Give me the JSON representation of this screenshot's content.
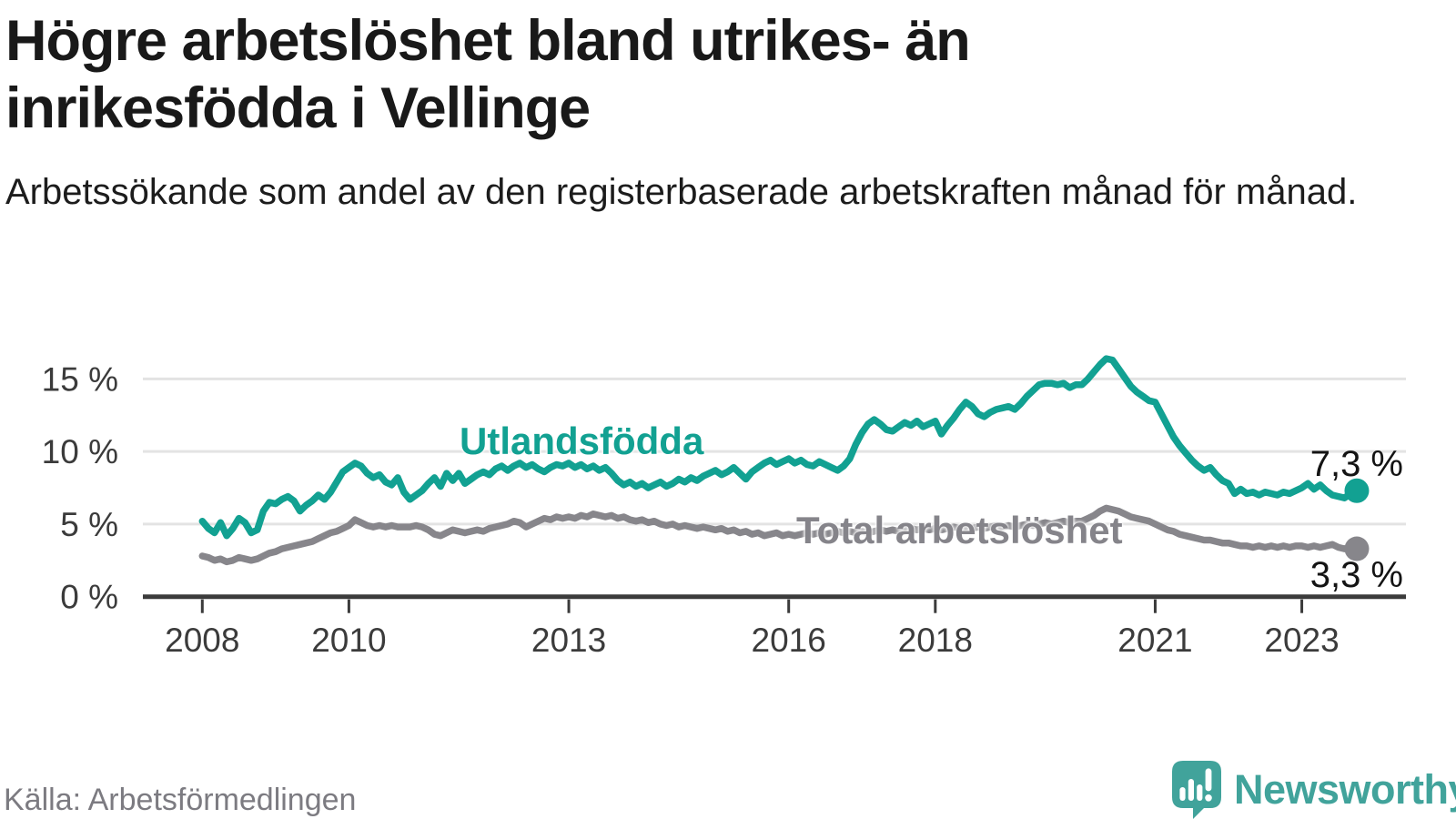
{
  "header": {
    "title": "Högre arbetslöshet bland utrikes- än inrikesfödda i Vellinge",
    "subtitle": "Arbetssökande som andel av den registerbaserade arbetskraften månad för månad."
  },
  "chart_data": {
    "type": "line",
    "title": "Högre arbetslöshet bland utrikes- än inrikesfödda i Vellinge",
    "x_unit": "month",
    "x_start": "2008-01",
    "x_end": "2023-10",
    "x_ticks": [
      "2008",
      "2010",
      "2013",
      "2016",
      "2018",
      "2021",
      "2023"
    ],
    "y_ticks": [
      0,
      5,
      10,
      15
    ],
    "y_tick_labels": [
      "0 %",
      "5 %",
      "10 %",
      "15 %"
    ],
    "ylim": [
      0,
      17
    ],
    "grid": "horizontal",
    "legend_position": "inline-labels",
    "colors": {
      "accent_teal": "#12a192",
      "accent_gray": "#87868b",
      "grid": "#e3e3e3",
      "axis": "#3b3b3b"
    },
    "series": [
      {
        "name": "Utlandsfödda",
        "color": "#12a192",
        "end_label": "7,3 %",
        "end_value": 7.3,
        "values": [
          5.2,
          4.7,
          4.4,
          5.1,
          4.2,
          4.7,
          5.4,
          5.1,
          4.4,
          4.6,
          5.9,
          6.5,
          6.4,
          6.7,
          6.9,
          6.6,
          5.9,
          6.3,
          6.6,
          7.0,
          6.7,
          7.2,
          7.9,
          8.6,
          8.9,
          9.2,
          9.0,
          8.5,
          8.2,
          8.4,
          7.9,
          7.7,
          8.2,
          7.2,
          6.7,
          7.0,
          7.3,
          7.8,
          8.2,
          7.6,
          8.5,
          8.0,
          8.5,
          7.8,
          8.1,
          8.4,
          8.6,
          8.4,
          8.8,
          9.0,
          8.7,
          9.0,
          9.2,
          8.9,
          9.1,
          8.8,
          8.6,
          8.9,
          9.1,
          9.0,
          9.2,
          8.9,
          9.1,
          8.8,
          9.0,
          8.7,
          8.9,
          8.5,
          8.0,
          7.7,
          7.9,
          7.6,
          7.8,
          7.5,
          7.7,
          7.9,
          7.6,
          7.8,
          8.1,
          7.9,
          8.2,
          8.0,
          8.3,
          8.5,
          8.7,
          8.4,
          8.6,
          8.9,
          8.5,
          8.1,
          8.6,
          8.9,
          9.2,
          9.4,
          9.1,
          9.3,
          9.5,
          9.2,
          9.4,
          9.1,
          9.0,
          9.3,
          9.1,
          8.9,
          8.7,
          9.0,
          9.5,
          10.5,
          11.3,
          11.9,
          12.2,
          11.9,
          11.5,
          11.4,
          11.7,
          12.0,
          11.8,
          12.1,
          11.7,
          11.9,
          12.1,
          11.2,
          11.8,
          12.3,
          12.9,
          13.4,
          13.1,
          12.6,
          12.4,
          12.7,
          12.9,
          13.0,
          13.1,
          12.9,
          13.3,
          13.8,
          14.2,
          14.6,
          14.7,
          14.7,
          14.6,
          14.7,
          14.4,
          14.6,
          14.6,
          15.0,
          15.5,
          16.0,
          16.4,
          16.3,
          15.7,
          15.1,
          14.5,
          14.1,
          13.8,
          13.5,
          13.4,
          12.6,
          11.8,
          11.0,
          10.4,
          9.9,
          9.4,
          9.0,
          8.7,
          8.9,
          8.4,
          8.0,
          7.8,
          7.1,
          7.4,
          7.1,
          7.2,
          7.0,
          7.2,
          7.1,
          7.0,
          7.2,
          7.1,
          7.3,
          7.5,
          7.8,
          7.4,
          7.7,
          7.3,
          7.0,
          6.9,
          6.8,
          7.1,
          7.3
        ]
      },
      {
        "name": "Total arbetslöshet",
        "color": "#87868b",
        "end_label": "3,3 %",
        "end_value": 3.3,
        "values": [
          2.8,
          2.7,
          2.5,
          2.6,
          2.4,
          2.5,
          2.7,
          2.6,
          2.5,
          2.6,
          2.8,
          3.0,
          3.1,
          3.3,
          3.4,
          3.5,
          3.6,
          3.7,
          3.8,
          4.0,
          4.2,
          4.4,
          4.5,
          4.7,
          4.9,
          5.3,
          5.1,
          4.9,
          4.8,
          4.9,
          4.8,
          4.9,
          4.8,
          4.8,
          4.8,
          4.9,
          4.8,
          4.6,
          4.3,
          4.2,
          4.4,
          4.6,
          4.5,
          4.4,
          4.5,
          4.6,
          4.5,
          4.7,
          4.8,
          4.9,
          5.0,
          5.2,
          5.1,
          4.8,
          5.0,
          5.2,
          5.4,
          5.3,
          5.5,
          5.4,
          5.5,
          5.4,
          5.6,
          5.5,
          5.7,
          5.6,
          5.5,
          5.6,
          5.4,
          5.5,
          5.3,
          5.2,
          5.3,
          5.1,
          5.2,
          5.0,
          4.9,
          5.0,
          4.8,
          4.9,
          4.8,
          4.7,
          4.8,
          4.7,
          4.6,
          4.7,
          4.5,
          4.6,
          4.4,
          4.5,
          4.3,
          4.4,
          4.2,
          4.3,
          4.4,
          4.2,
          4.3,
          4.2,
          4.3,
          4.4,
          4.3,
          4.4,
          4.3,
          4.4,
          4.5,
          4.4,
          4.5,
          4.4,
          4.5,
          4.4,
          4.5,
          4.6,
          4.5,
          4.6,
          4.5,
          4.6,
          4.7,
          4.6,
          4.7,
          4.6,
          4.7,
          4.6,
          4.7,
          4.8,
          4.7,
          4.8,
          4.7,
          4.8,
          4.7,
          4.8,
          4.9,
          4.8,
          4.9,
          4.8,
          4.9,
          5.0,
          4.9,
          5.0,
          5.1,
          5.0,
          5.1,
          5.2,
          5.1,
          5.2,
          5.2,
          5.4,
          5.6,
          5.9,
          6.1,
          6.0,
          5.9,
          5.7,
          5.5,
          5.4,
          5.3,
          5.2,
          5.0,
          4.8,
          4.6,
          4.5,
          4.3,
          4.2,
          4.1,
          4.0,
          3.9,
          3.9,
          3.8,
          3.7,
          3.7,
          3.6,
          3.5,
          3.5,
          3.4,
          3.5,
          3.4,
          3.5,
          3.4,
          3.5,
          3.4,
          3.5,
          3.5,
          3.4,
          3.5,
          3.4,
          3.5,
          3.6,
          3.4,
          3.3,
          3.4,
          3.3
        ]
      }
    ]
  },
  "footer": {
    "source": "Källa: Arbetsförmedlingen",
    "brand": "Newsworthy"
  }
}
